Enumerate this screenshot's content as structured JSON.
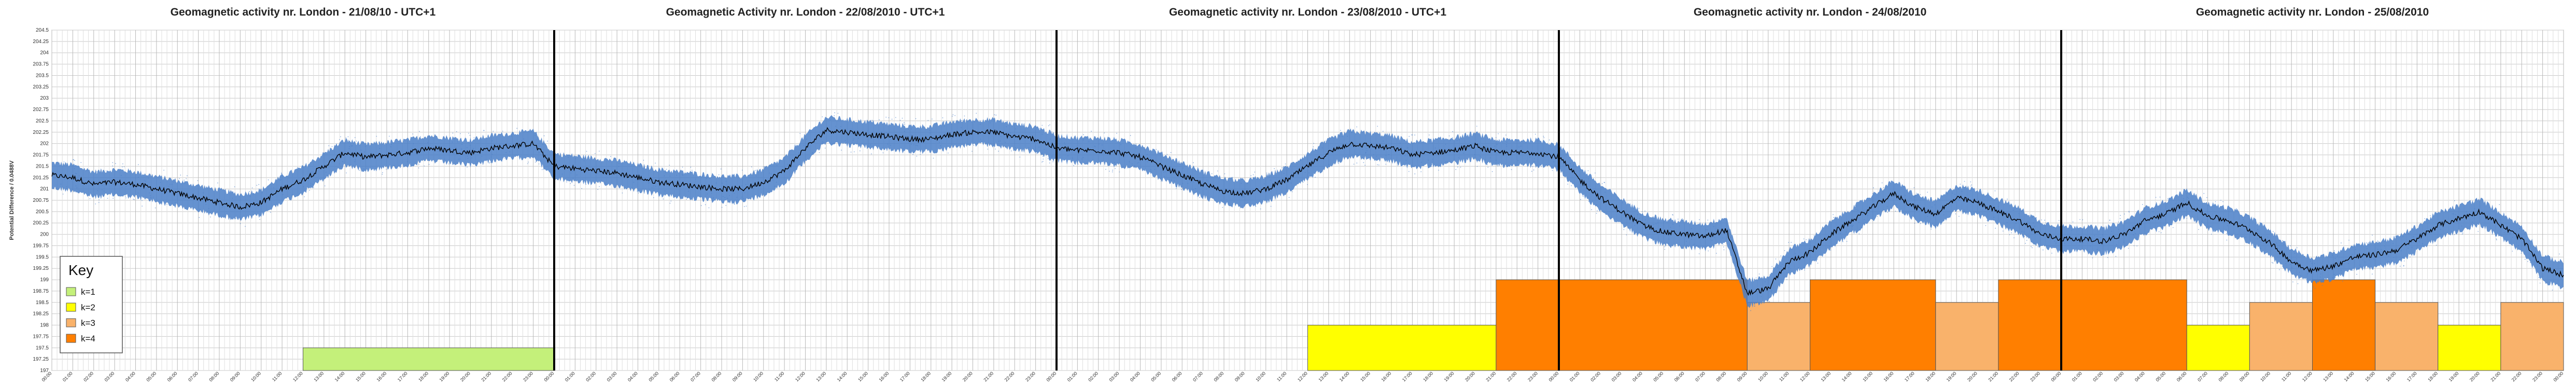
{
  "chart_data": {
    "type": "line",
    "titles": [
      "Geomagnetic activity nr. London - 21/08/10 - UTC+1",
      "Geomagnetic Activity nr. London - 22/08/2010 - UTC+1",
      "Geomagnetic activity nr. London - 23/08/2010 - UTC+1",
      "Geomagnetic activity nr. London - 24/08/2010",
      "Geomagnetic activity nr. London - 25/08/2010"
    ],
    "ylabel": "Potential Difference / 0.0488V",
    "ylim": [
      197,
      204.5
    ],
    "yticks": [
      197,
      197.25,
      197.5,
      197.75,
      198,
      198.25,
      198.5,
      198.75,
      199,
      199.25,
      199.5,
      199.75,
      200,
      200.25,
      200.5,
      200.75,
      201,
      201.25,
      201.5,
      201.75,
      202,
      202.25,
      202.5,
      202.75,
      203,
      203.25,
      203.5,
      203.75,
      204,
      204.25,
      204.5
    ],
    "xlim": [
      0,
      120
    ],
    "day_boundaries": [
      24,
      48,
      72,
      96
    ],
    "grid": true,
    "series": [
      {
        "color_band": "#4a7fc8",
        "color_line": "#000000",
        "x": [
          0,
          1,
          2,
          3,
          4,
          5,
          6,
          7,
          8,
          9,
          10,
          11,
          12,
          13,
          14,
          15,
          16,
          17,
          18,
          19,
          20,
          21,
          22,
          23,
          24,
          25,
          26,
          27,
          28,
          29,
          30,
          31,
          32,
          33,
          34,
          35,
          36,
          37,
          38,
          39,
          40,
          41,
          42,
          43,
          44,
          45,
          46,
          47,
          48,
          49,
          50,
          51,
          52,
          53,
          54,
          55,
          56,
          57,
          58,
          59,
          60,
          61,
          62,
          63,
          64,
          65,
          66,
          67,
          68,
          69,
          70,
          71,
          72,
          73,
          74,
          75,
          76,
          77,
          78,
          79,
          80,
          81,
          82,
          83,
          84,
          85,
          86,
          87,
          88,
          89,
          90,
          91,
          92,
          93,
          94,
          95,
          96,
          97,
          98,
          99,
          100,
          101,
          102,
          103,
          104,
          105,
          106,
          107,
          108,
          109,
          110,
          111,
          112,
          113,
          114,
          115,
          116,
          117,
          118,
          119,
          120
        ],
        "values": [
          201.3,
          201.25,
          201.1,
          201.15,
          201.1,
          201.0,
          200.9,
          200.8,
          200.7,
          200.6,
          200.7,
          201.0,
          201.2,
          201.5,
          201.8,
          201.7,
          201.75,
          201.8,
          201.9,
          201.85,
          201.8,
          201.9,
          201.95,
          202.0,
          201.5,
          201.45,
          201.4,
          201.35,
          201.25,
          201.15,
          201.1,
          201.05,
          201.0,
          201.0,
          201.15,
          201.4,
          201.9,
          202.3,
          202.25,
          202.2,
          202.15,
          202.1,
          202.1,
          202.2,
          202.25,
          202.25,
          202.15,
          202.1,
          201.9,
          201.85,
          201.85,
          201.8,
          201.7,
          201.5,
          201.3,
          201.1,
          200.95,
          200.9,
          201.0,
          201.2,
          201.5,
          201.8,
          202.0,
          201.95,
          201.9,
          201.75,
          201.8,
          201.85,
          201.95,
          201.8,
          201.8,
          201.8,
          201.7,
          201.2,
          200.8,
          200.5,
          200.2,
          200.05,
          200.0,
          199.95,
          200.1,
          198.7,
          198.8,
          199.4,
          199.6,
          200.0,
          200.3,
          200.6,
          200.9,
          200.6,
          200.45,
          200.8,
          200.7,
          200.5,
          200.3,
          200.0,
          199.9,
          199.9,
          199.85,
          200.0,
          200.3,
          200.45,
          200.7,
          200.4,
          200.3,
          200.1,
          199.8,
          199.4,
          199.2,
          199.3,
          199.5,
          199.55,
          199.65,
          199.9,
          200.2,
          200.35,
          200.5,
          200.2,
          199.9,
          199.25,
          199.1
        ]
      }
    ],
    "k_index_bars": [
      {
        "start": 12,
        "end": 24,
        "k": 1
      },
      {
        "start": 60,
        "end": 69,
        "k": 2
      },
      {
        "start": 69,
        "end": 81,
        "k": 4
      },
      {
        "start": 81,
        "end": 84,
        "k": 3
      },
      {
        "start": 84,
        "end": 90,
        "k": 4
      },
      {
        "start": 90,
        "end": 93,
        "k": 3
      },
      {
        "start": 93,
        "end": 102,
        "k": 4
      },
      {
        "start": 102,
        "end": 105,
        "k": 2
      },
      {
        "start": 105,
        "end": 108,
        "k": 3
      },
      {
        "start": 108,
        "end": 111,
        "k": 4
      },
      {
        "start": 111,
        "end": 114,
        "k": 3
      },
      {
        "start": 114,
        "end": 117,
        "k": 2
      },
      {
        "start": 117,
        "end": 120,
        "k": 3
      }
    ],
    "legend": {
      "title": "Key",
      "placement": "bottom-left",
      "items": [
        {
          "label": "k=1",
          "color": "#c4f07a"
        },
        {
          "label": "k=2",
          "color": "#ffff00"
        },
        {
          "label": "k=3",
          "color": "#f9b26b"
        },
        {
          "label": "k=4",
          "color": "#ff7f00"
        }
      ]
    }
  }
}
